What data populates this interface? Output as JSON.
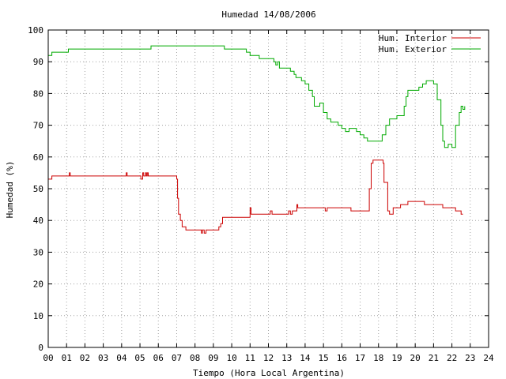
{
  "chart_data": {
    "type": "line",
    "title": "Humedad 14/08/2006",
    "xlabel": "Tiempo (Hora Local Argentina)",
    "ylabel": "Humedad (%)",
    "xlim": [
      0,
      24
    ],
    "ylim": [
      0,
      100
    ],
    "grid": true,
    "legend_position": "top-right",
    "x_ticks": [
      "00",
      "01",
      "02",
      "03",
      "04",
      "05",
      "06",
      "07",
      "08",
      "09",
      "10",
      "11",
      "12",
      "13",
      "14",
      "15",
      "16",
      "17",
      "18",
      "19",
      "20",
      "21",
      "22",
      "23",
      "24"
    ],
    "y_ticks": [
      "0",
      "10",
      "20",
      "30",
      "40",
      "50",
      "60",
      "70",
      "80",
      "90",
      "100"
    ],
    "series": [
      {
        "name": "Hum. Interior",
        "color": "#cc0000",
        "x": [
          0,
          0.1,
          0.2,
          1.1,
          1.15,
          1.2,
          1.3,
          4.2,
          4.25,
          4.3,
          5.0,
          5.05,
          5.15,
          5.2,
          5.3,
          5.35,
          5.4,
          5.45,
          6.8,
          7.0,
          7.05,
          7.1,
          7.2,
          7.3,
          7.5,
          8.3,
          8.35,
          8.4,
          8.5,
          8.6,
          8.7,
          9.1,
          9.3,
          9.4,
          9.5,
          9.7,
          10.0,
          11.0,
          11.05,
          11.2,
          12.0,
          12.1,
          12.2,
          13.0,
          13.1,
          13.2,
          13.3,
          13.5,
          13.55,
          13.6,
          14.0,
          14.5,
          15.0,
          15.1,
          15.2,
          15.4,
          15.5,
          16.4,
          16.5,
          17.4,
          17.5,
          17.6,
          17.7,
          18.2,
          18.25,
          18.3,
          18.5,
          18.6,
          18.8,
          19.2,
          19.4,
          19.6,
          20.0,
          20.4,
          20.5,
          21.0,
          21.4,
          21.5,
          22.1,
          22.2,
          22.4,
          22.5,
          22.6
        ],
        "y": [
          53,
          53,
          54,
          54,
          55,
          54,
          54,
          54,
          55,
          54,
          54,
          53,
          55,
          54,
          55,
          54,
          55,
          54,
          54,
          53,
          47,
          42,
          40,
          38,
          37,
          37,
          36,
          37,
          36,
          37,
          37,
          37,
          38,
          39,
          41,
          41,
          41,
          44,
          42,
          42,
          42,
          43,
          42,
          42,
          43,
          42,
          43,
          43,
          45,
          44,
          44,
          44,
          44,
          43,
          44,
          44,
          44,
          44,
          43,
          43,
          50,
          58,
          59,
          59,
          58,
          52,
          43,
          42,
          44,
          45,
          45,
          46,
          46,
          46,
          45,
          45,
          45,
          44,
          44,
          43,
          43,
          42,
          42
        ]
      },
      {
        "name": "Hum. Exterior",
        "color": "#00aa00",
        "x": [
          0,
          0.2,
          0.3,
          0.4,
          1.0,
          1.1,
          1.2,
          2.0,
          3.0,
          4.0,
          5.0,
          5.5,
          5.6,
          6.0,
          7.0,
          8.0,
          9.0,
          9.5,
          9.6,
          10.0,
          10.5,
          10.8,
          11.0,
          11.2,
          11.5,
          12.0,
          12.3,
          12.4,
          12.5,
          12.6,
          12.8,
          13.0,
          13.2,
          13.4,
          13.5,
          13.6,
          13.8,
          14.0,
          14.2,
          14.4,
          14.5,
          14.6,
          14.8,
          15.0,
          15.2,
          15.4,
          15.6,
          15.8,
          16.0,
          16.2,
          16.4,
          16.6,
          16.8,
          17.0,
          17.2,
          17.4,
          17.6,
          18.0,
          18.2,
          18.4,
          18.6,
          19.0,
          19.2,
          19.4,
          19.5,
          19.6,
          20.0,
          20.2,
          20.4,
          20.6,
          20.8,
          21.0,
          21.2,
          21.4,
          21.5,
          21.6,
          21.8,
          22.0,
          22.1,
          22.2,
          22.4,
          22.5,
          22.6,
          22.7
        ],
        "y": [
          92,
          93,
          93,
          93,
          93,
          94,
          94,
          94,
          94,
          94,
          94,
          94,
          95,
          95,
          95,
          95,
          95,
          95,
          94,
          94,
          94,
          93,
          92,
          92,
          91,
          91,
          90,
          89,
          90,
          88,
          88,
          88,
          87,
          86,
          85,
          85,
          84,
          83,
          81,
          79,
          76,
          76,
          77,
          74,
          72,
          71,
          71,
          70,
          69,
          68,
          69,
          69,
          68,
          67,
          66,
          65,
          65,
          65,
          67,
          70,
          72,
          73,
          73,
          76,
          79,
          81,
          81,
          82,
          83,
          84,
          84,
          83,
          78,
          70,
          65,
          63,
          64,
          63,
          63,
          70,
          74,
          76,
          75,
          76
        ]
      }
    ]
  }
}
